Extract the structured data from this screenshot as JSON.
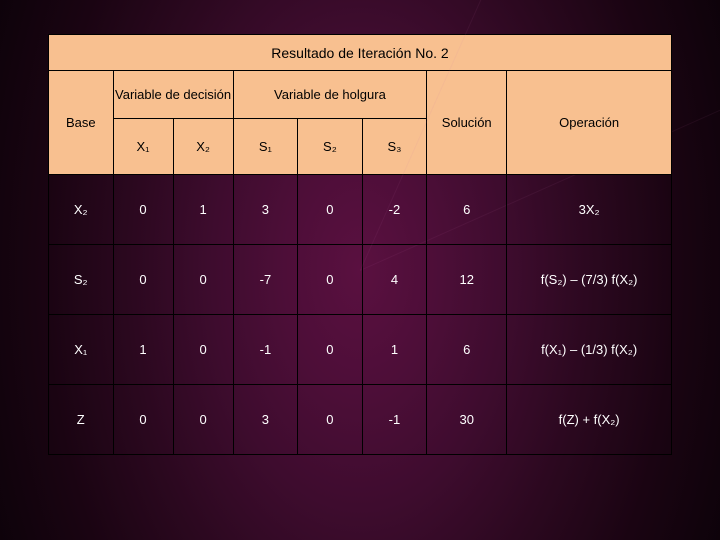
{
  "table": {
    "title": "Resultado de Iteración No. 2",
    "headers": {
      "base": "Base",
      "var_decision": "Variable de decisión",
      "var_holgura": "Variable de holgura",
      "solucion": "Solución",
      "operacion": "Operación",
      "x1": "X₁",
      "x2": "X₂",
      "s1": "S₁",
      "s2": "S₂",
      "s3": "S₃"
    },
    "rows": [
      {
        "base": "X₂",
        "x1": "0",
        "x2": "1",
        "s1": "3",
        "s2": "0",
        "s3": "-2",
        "sol": "6",
        "op": "3X₂"
      },
      {
        "base": "S₂",
        "x1": "0",
        "x2": "0",
        "s1": "-7",
        "s2": "0",
        "s3": "4",
        "sol": "12",
        "op": "f(S₂) – (7/3) f(X₂)"
      },
      {
        "base": "X₁",
        "x1": "1",
        "x2": "0",
        "s1": "-1",
        "s2": "0",
        "s3": "1",
        "sol": "6",
        "op": "f(X₁) – (1/3) f(X₂)"
      },
      {
        "base": "Z",
        "x1": "0",
        "x2": "0",
        "s1": "3",
        "s2": "0",
        "s3": "-1",
        "sol": "30",
        "op": "f(Z) + f(X₂)"
      }
    ],
    "colors": {
      "header_bg": "#f8c090",
      "body_text": "#ffffff",
      "border": "#000000"
    }
  }
}
